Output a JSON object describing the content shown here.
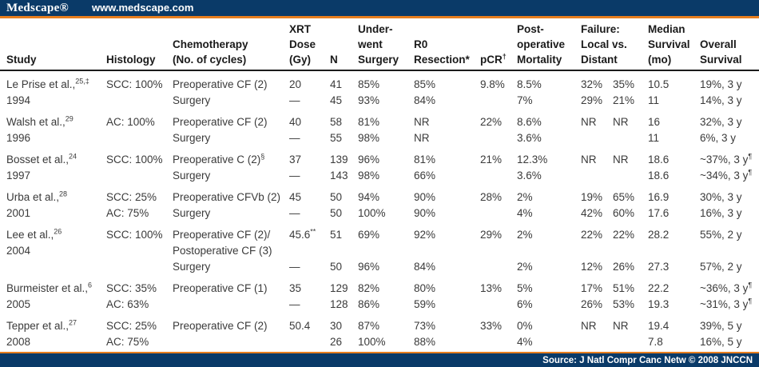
{
  "brand": {
    "logo": "Medscape®",
    "url": "www.medscape.com"
  },
  "footer": {
    "source": "Source: J Natl Compr Canc Netw © 2008 JNCCN"
  },
  "colors": {
    "navy": "#0a3a68",
    "orange": "#e87e1e"
  },
  "table": {
    "columns": [
      {
        "key": "study",
        "label_lines": [
          "Study"
        ]
      },
      {
        "key": "histology",
        "label_lines": [
          "Histology"
        ]
      },
      {
        "key": "chemo",
        "label_lines": [
          "Chemotherapy",
          "(No. of cycles)"
        ]
      },
      {
        "key": "xrt",
        "label_lines": [
          "XRT",
          "Dose",
          "(Gy)"
        ]
      },
      {
        "key": "n",
        "label_lines": [
          "N"
        ]
      },
      {
        "key": "surgery",
        "label_lines": [
          "Under-",
          "went",
          "Surgery"
        ]
      },
      {
        "key": "r0",
        "label_lines": [
          "R0",
          "Resection*"
        ]
      },
      {
        "key": "pcr",
        "label_lines": [
          "pCR^{†}"
        ]
      },
      {
        "key": "mortality",
        "label_lines": [
          "Post-",
          "operative",
          "Mortality"
        ]
      },
      {
        "key": "failure",
        "label_lines": [
          "Failure:",
          "Local vs.",
          "Distant"
        ],
        "pair": true
      },
      {
        "key": "median",
        "label_lines": [
          "Median",
          "Survival",
          "(mo)"
        ]
      },
      {
        "key": "overall",
        "label_lines": [
          "Overall",
          "Survival"
        ]
      }
    ],
    "rows": [
      {
        "study": [
          "Le Prise et al.,^{25,‡}",
          "1994"
        ],
        "histology": [
          "SCC: 100%",
          ""
        ],
        "chemo": [
          "Preoperative CF (2)",
          "Surgery"
        ],
        "xrt": [
          "20",
          "—"
        ],
        "n": [
          "41",
          "45"
        ],
        "surgery": [
          "85%",
          "93%"
        ],
        "r0": [
          "85%",
          "84%"
        ],
        "pcr": [
          "9.8%",
          ""
        ],
        "mortality": [
          "8.5%",
          "7%"
        ],
        "failure": [
          [
            "32%",
            "35%"
          ],
          [
            "29%",
            "21%"
          ]
        ],
        "median": [
          "10.5",
          "11"
        ],
        "overall": [
          "19%, 3 y",
          "14%, 3 y"
        ]
      },
      {
        "study": [
          "Walsh et al.,^{29}",
          "1996"
        ],
        "histology": [
          "AC: 100%",
          ""
        ],
        "chemo": [
          "Preoperative CF (2)",
          "Surgery"
        ],
        "xrt": [
          "40",
          "—"
        ],
        "n": [
          "58",
          "55"
        ],
        "surgery": [
          "81%",
          "98%"
        ],
        "r0": [
          "NR",
          "NR"
        ],
        "pcr": [
          "22%",
          ""
        ],
        "mortality": [
          "8.6%",
          "3.6%"
        ],
        "failure": [
          [
            "NR",
            "NR"
          ],
          [
            "",
            ""
          ]
        ],
        "median": [
          "16",
          "11"
        ],
        "overall": [
          "32%, 3 y",
          "6%, 3 y"
        ]
      },
      {
        "study": [
          "Bosset et al.,^{24}",
          "1997"
        ],
        "histology": [
          "SCC: 100%",
          ""
        ],
        "chemo": [
          "Preoperative C (2)^{§}",
          "Surgery"
        ],
        "xrt": [
          "37",
          "—"
        ],
        "n": [
          "139",
          "143"
        ],
        "surgery": [
          "96%",
          "98%"
        ],
        "r0": [
          "81%",
          "66%"
        ],
        "pcr": [
          "21%",
          ""
        ],
        "mortality": [
          "12.3%",
          "3.6%"
        ],
        "failure": [
          [
            "NR",
            "NR"
          ],
          [
            "",
            ""
          ]
        ],
        "median": [
          "18.6",
          "18.6"
        ],
        "overall": [
          "~37%, 3 y^{¶}",
          "~34%, 3 y^{¶}"
        ]
      },
      {
        "study": [
          "Urba et al.,^{28}",
          "2001"
        ],
        "histology": [
          "SCC: 25%",
          "AC: 75%"
        ],
        "chemo": [
          "Preoperative CFVb (2)",
          "Surgery"
        ],
        "xrt": [
          "45",
          "—"
        ],
        "n": [
          "50",
          "50"
        ],
        "surgery": [
          "94%",
          "100%"
        ],
        "r0": [
          "90%",
          "90%"
        ],
        "pcr": [
          "28%",
          ""
        ],
        "mortality": [
          "2%",
          "4%"
        ],
        "failure": [
          [
            "19%",
            "65%"
          ],
          [
            "42%",
            "60%"
          ]
        ],
        "median": [
          "16.9",
          "17.6"
        ],
        "overall": [
          "30%, 3 y",
          "16%, 3 y"
        ]
      },
      {
        "study": [
          "Lee et al.,^{26}",
          "2004",
          ""
        ],
        "histology": [
          "SCC: 100%",
          "",
          ""
        ],
        "chemo": [
          "Preoperative CF (2)/",
          "Postoperative CF (3)",
          "Surgery"
        ],
        "xrt": [
          "45.6^{**}",
          "",
          "—"
        ],
        "n": [
          "51",
          "",
          "50"
        ],
        "surgery": [
          "69%",
          "",
          "96%"
        ],
        "r0": [
          "92%",
          "",
          "84%"
        ],
        "pcr": [
          "29%",
          "",
          ""
        ],
        "mortality": [
          "2%",
          "",
          "2%"
        ],
        "failure": [
          [
            "22%",
            "22%"
          ],
          [
            "",
            ""
          ],
          [
            "12%",
            "26%"
          ]
        ],
        "median": [
          "28.2",
          "",
          "27.3"
        ],
        "overall": [
          "55%, 2 y",
          "",
          "57%, 2 y"
        ]
      },
      {
        "study": [
          "Burmeister et al.,^{6}",
          "2005"
        ],
        "histology": [
          "SCC: 35%",
          "AC: 63%"
        ],
        "chemo": [
          "Preoperative CF (1)",
          ""
        ],
        "xrt": [
          "35",
          "—"
        ],
        "n": [
          "129",
          "128"
        ],
        "surgery": [
          "82%",
          "86%"
        ],
        "r0": [
          "80%",
          "59%"
        ],
        "pcr": [
          "13%",
          ""
        ],
        "mortality": [
          "5%",
          "6%"
        ],
        "failure": [
          [
            "17%",
            "51%"
          ],
          [
            "26%",
            "53%"
          ]
        ],
        "median": [
          "22.2",
          "19.3"
        ],
        "overall": [
          "~36%, 3 y^{¶}",
          "~31%, 3 y^{¶}"
        ]
      },
      {
        "study": [
          "Tepper et al.,^{27}",
          "2008"
        ],
        "histology": [
          "SCC: 25%",
          "AC: 75%"
        ],
        "chemo": [
          "Preoperative CF (2)",
          ""
        ],
        "xrt": [
          "50.4",
          ""
        ],
        "n": [
          "30",
          "26"
        ],
        "surgery": [
          "87%",
          "100%"
        ],
        "r0": [
          "73%",
          "88%"
        ],
        "pcr": [
          "33%",
          ""
        ],
        "mortality": [
          "0%",
          "4%"
        ],
        "failure": [
          [
            "NR",
            "NR"
          ],
          [
            "",
            ""
          ]
        ],
        "median": [
          "19.4",
          "7.8"
        ],
        "overall": [
          "39%, 5 y",
          "16%, 5 y"
        ]
      }
    ]
  }
}
